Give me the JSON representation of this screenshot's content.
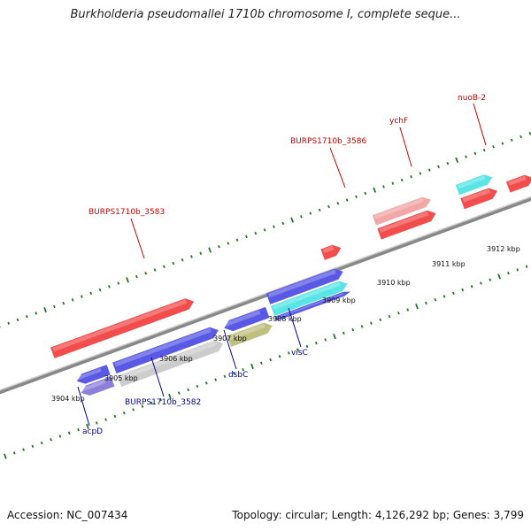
{
  "title": "Burkholderia pseudomallei 1710b chromosome I, complete seque...",
  "footer": {
    "accession": "Accession: NC_007434",
    "summary": "Topology: circular; Length: 4,126,292 bp; Genes: 3,799"
  },
  "ticks": [
    "3904 kbp",
    "3905 kbp",
    "3906 kbp",
    "3907 kbp",
    "3908 kbp",
    "3909 kbp",
    "3910 kbp",
    "3911 kbp",
    "3912 kbp"
  ],
  "gene_labels_top": [
    "BURPS1710b_3583",
    "BURPS1710b_3586",
    "ychF",
    "nuoB-2"
  ],
  "gene_labels_bottom": [
    "acpD",
    "BURPS1710b_3582",
    "dsbC",
    "visC"
  ],
  "colors": {
    "red": "#ee1111",
    "blue": "#2222dd",
    "cyan": "#22dddd",
    "pink": "#ee8888",
    "olive": "#aaaa55",
    "gray": "#bbbbbb",
    "purple": "#6655cc",
    "magenta": "#ee2299",
    "backbone": "#888888",
    "tick": "#227722"
  }
}
